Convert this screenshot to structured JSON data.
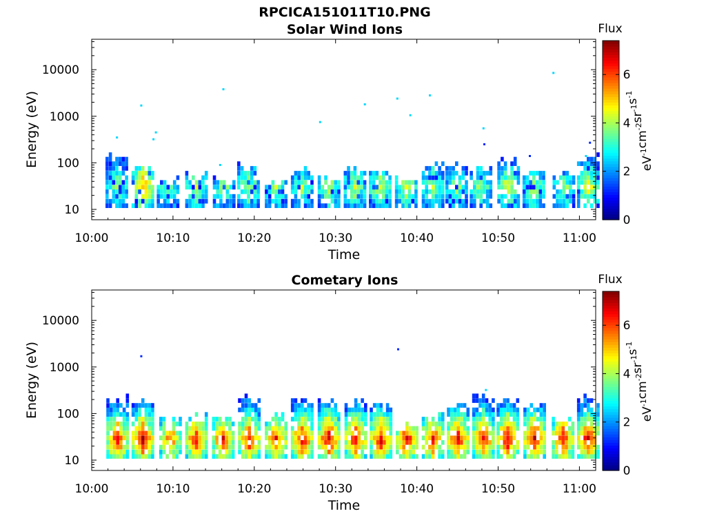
{
  "figure": {
    "title": "RPCICA151011T10.PNG"
  },
  "colors": {
    "frame": "#000000",
    "background": "#ffffff"
  },
  "colorbar": {
    "label": "Flux",
    "units_parts": [
      "eV",
      "-1",
      "cm",
      "-2",
      "sr",
      "-1",
      "s",
      "-1"
    ],
    "ticks": [
      "0",
      "2",
      "4",
      "6"
    ],
    "range": [
      0,
      7.4
    ],
    "colormap": "jet"
  },
  "chart_data": [
    {
      "type": "heatmap",
      "title": "Solar Wind Ions",
      "xlabel": "Time",
      "ylabel": "Energy (eV)",
      "x_ticks": [
        "10:00",
        "10:10",
        "10:20",
        "10:30",
        "10:40",
        "10:50",
        "11:00"
      ],
      "y_ticks": [
        "10",
        "100",
        "1000",
        "10000"
      ],
      "y_scale": "log",
      "ylim": [
        6,
        45000
      ],
      "xlim_minutes": [
        0,
        62
      ],
      "clim": [
        0,
        7.4
      ],
      "grid": false,
      "bursts": [
        {
          "time_min": 3.0,
          "peak_flux": 3.8,
          "top_eV": 140
        },
        {
          "time_min": 6.2,
          "peak_flux": 5.6,
          "top_eV": 90
        },
        {
          "time_min": 9.3,
          "peak_flux": 3.6,
          "top_eV": 45
        },
        {
          "time_min": 12.8,
          "peak_flux": 4.1,
          "top_eV": 55
        },
        {
          "time_min": 16.2,
          "peak_flux": 3.9,
          "top_eV": 45
        },
        {
          "time_min": 19.2,
          "peak_flux": 4.2,
          "top_eV": 100
        },
        {
          "time_min": 22.6,
          "peak_flux": 3.9,
          "top_eV": 45
        },
        {
          "time_min": 25.8,
          "peak_flux": 4.0,
          "top_eV": 70
        },
        {
          "time_min": 29.1,
          "peak_flux": 4.2,
          "top_eV": 45
        },
        {
          "time_min": 32.3,
          "peak_flux": 4.3,
          "top_eV": 80
        },
        {
          "time_min": 35.4,
          "peak_flux": 4.4,
          "top_eV": 70
        },
        {
          "time_min": 38.6,
          "peak_flux": 4.5,
          "top_eV": 45
        },
        {
          "time_min": 41.9,
          "peak_flux": 4.1,
          "top_eV": 85
        },
        {
          "time_min": 44.8,
          "peak_flux": 3.9,
          "top_eV": 85
        },
        {
          "time_min": 47.8,
          "peak_flux": 3.9,
          "top_eV": 80
        },
        {
          "time_min": 51.2,
          "peak_flux": 4.6,
          "top_eV": 120
        },
        {
          "time_min": 54.3,
          "peak_flux": 4.3,
          "top_eV": 70
        },
        {
          "time_min": 58.0,
          "peak_flux": 4.0,
          "top_eV": 60
        },
        {
          "time_min": 61.0,
          "peak_flux": 4.7,
          "top_eV": 130
        }
      ],
      "isolated_points": [
        {
          "time_min": 3.1,
          "energy_eV": 350,
          "flux": 2.5
        },
        {
          "time_min": 6.1,
          "energy_eV": 1700,
          "flux": 2.5
        },
        {
          "time_min": 7.6,
          "energy_eV": 320,
          "flux": 2.5
        },
        {
          "time_min": 7.9,
          "energy_eV": 450,
          "flux": 2.5
        },
        {
          "time_min": 15.8,
          "energy_eV": 90,
          "flux": 2.5
        },
        {
          "time_min": 16.2,
          "energy_eV": 3800,
          "flux": 2.5
        },
        {
          "time_min": 28.1,
          "energy_eV": 750,
          "flux": 2.5
        },
        {
          "time_min": 33.6,
          "energy_eV": 1800,
          "flux": 2.5
        },
        {
          "time_min": 37.6,
          "energy_eV": 2400,
          "flux": 2.5
        },
        {
          "time_min": 39.2,
          "energy_eV": 1050,
          "flux": 2.5
        },
        {
          "time_min": 41.6,
          "energy_eV": 2800,
          "flux": 2.5
        },
        {
          "time_min": 48.2,
          "energy_eV": 550,
          "flux": 2.5
        },
        {
          "time_min": 48.3,
          "energy_eV": 250,
          "flux": 1.2
        },
        {
          "time_min": 53.9,
          "energy_eV": 140,
          "flux": 1.2
        },
        {
          "time_min": 56.8,
          "energy_eV": 8500,
          "flux": 2.5
        },
        {
          "time_min": 60.8,
          "energy_eV": 140,
          "flux": 2.5
        },
        {
          "time_min": 61.3,
          "energy_eV": 270,
          "flux": 1.2
        }
      ]
    },
    {
      "type": "heatmap",
      "title": "Cometary Ions",
      "xlabel": "Time",
      "ylabel": "Energy (eV)",
      "x_ticks": [
        "10:00",
        "10:10",
        "10:20",
        "10:30",
        "10:40",
        "10:50",
        "11:00"
      ],
      "y_ticks": [
        "10",
        "100",
        "1000",
        "10000"
      ],
      "y_scale": "log",
      "ylim": [
        6,
        45000
      ],
      "xlim_minutes": [
        0,
        62
      ],
      "clim": [
        0,
        7.4
      ],
      "grid": false,
      "bursts": [
        {
          "time_min": 3.1,
          "peak_flux": 6.5,
          "top_eV": 230
        },
        {
          "time_min": 6.2,
          "peak_flux": 6.9,
          "top_eV": 200
        },
        {
          "time_min": 9.6,
          "peak_flux": 5.9,
          "top_eV": 80
        },
        {
          "time_min": 12.8,
          "peak_flux": 6.4,
          "top_eV": 90
        },
        {
          "time_min": 16.1,
          "peak_flux": 6.5,
          "top_eV": 90
        },
        {
          "time_min": 19.3,
          "peak_flux": 6.6,
          "top_eV": 240
        },
        {
          "time_min": 22.6,
          "peak_flux": 6.4,
          "top_eV": 90
        },
        {
          "time_min": 25.8,
          "peak_flux": 6.7,
          "top_eV": 200
        },
        {
          "time_min": 29.1,
          "peak_flux": 6.9,
          "top_eV": 190
        },
        {
          "time_min": 32.4,
          "peak_flux": 6.6,
          "top_eV": 180
        },
        {
          "time_min": 35.5,
          "peak_flux": 6.6,
          "top_eV": 150
        },
        {
          "time_min": 38.7,
          "peak_flux": 6.6,
          "top_eV": 60
        },
        {
          "time_min": 41.9,
          "peak_flux": 6.5,
          "top_eV": 90
        },
        {
          "time_min": 45.0,
          "peak_flux": 6.7,
          "top_eV": 160
        },
        {
          "time_min": 48.1,
          "peak_flux": 6.6,
          "top_eV": 250
        },
        {
          "time_min": 51.1,
          "peak_flux": 6.9,
          "top_eV": 210
        },
        {
          "time_min": 54.4,
          "peak_flux": 6.9,
          "top_eV": 160
        },
        {
          "time_min": 57.9,
          "peak_flux": 6.6,
          "top_eV": 80
        },
        {
          "time_min": 61.0,
          "peak_flux": 6.9,
          "top_eV": 290
        }
      ],
      "isolated_points": [
        {
          "time_min": 6.1,
          "energy_eV": 1700,
          "flux": 1.2
        },
        {
          "time_min": 37.7,
          "energy_eV": 2400,
          "flux": 1.2
        },
        {
          "time_min": 48.5,
          "energy_eV": 320,
          "flux": 2.5
        }
      ]
    }
  ]
}
